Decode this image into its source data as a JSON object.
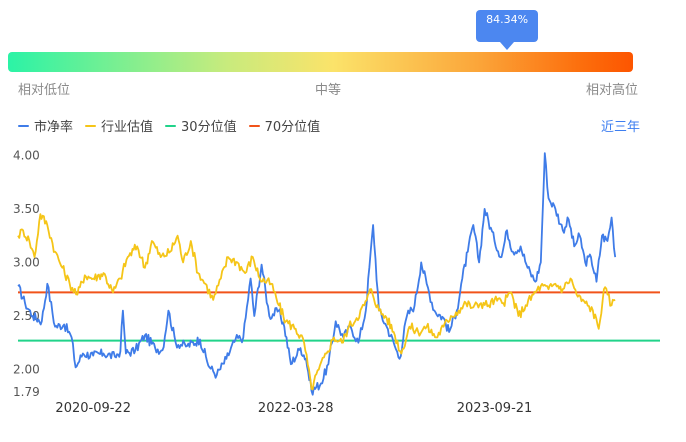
{
  "gauge": {
    "percent_label": "84.34%",
    "percent": 84.34,
    "low_label": "相对低位",
    "mid_label": "中等",
    "high_label": "相对高位"
  },
  "legend": {
    "items": [
      {
        "label": "市净率",
        "color": "#3f7ce8"
      },
      {
        "label": "行业估值",
        "color": "#f5c518"
      },
      {
        "label": "30分位值",
        "color": "#21d38a"
      },
      {
        "label": "70分位值",
        "color": "#f1531a"
      }
    ],
    "range_label": "近三年"
  },
  "chart_data": {
    "type": "line",
    "y_ticks": [
      "4.00",
      "3.50",
      "3.00",
      "2.50",
      "2.00",
      "1.79"
    ],
    "y_tick_values": [
      4.0,
      3.5,
      3.0,
      2.5,
      2.0,
      1.79
    ],
    "ylim": [
      1.79,
      4.05
    ],
    "x_ticks": [
      "2020-09-22",
      "2022-03-28",
      "2023-09-21"
    ],
    "x_range": [
      "2020-03-01",
      "2024-12-15"
    ],
    "x_tick_dates": [
      "2020-09-22",
      "2022-03-28",
      "2023-09-21"
    ],
    "reference_lines": [
      {
        "name": "30分位值",
        "value": 2.27,
        "color": "#21d38a"
      },
      {
        "name": "70分位值",
        "value": 2.72,
        "color": "#f1531a"
      }
    ],
    "series": [
      {
        "name": "市净率",
        "color": "#3f7ce8",
        "points": [
          [
            "2020-03-01",
            2.78
          ],
          [
            "2020-03-20",
            2.62
          ],
          [
            "2020-04-10",
            2.5
          ],
          [
            "2020-05-05",
            2.45
          ],
          [
            "2020-05-20",
            2.8
          ],
          [
            "2020-06-10",
            2.4
          ],
          [
            "2020-07-05",
            2.42
          ],
          [
            "2020-07-25",
            2.3
          ],
          [
            "2020-08-05",
            2.02
          ],
          [
            "2020-08-25",
            2.15
          ],
          [
            "2020-09-22",
            2.13
          ],
          [
            "2020-10-20",
            2.15
          ],
          [
            "2020-11-20",
            2.12
          ],
          [
            "2020-12-05",
            2.17
          ],
          [
            "2020-12-12",
            2.55
          ],
          [
            "2020-12-20",
            2.15
          ],
          [
            "2021-01-15",
            2.18
          ],
          [
            "2021-02-10",
            2.32
          ],
          [
            "2021-03-10",
            2.2
          ],
          [
            "2021-03-30",
            2.18
          ],
          [
            "2021-04-15",
            2.55
          ],
          [
            "2021-05-05",
            2.25
          ],
          [
            "2021-06-05",
            2.22
          ],
          [
            "2021-07-10",
            2.28
          ],
          [
            "2021-08-05",
            2.02
          ],
          [
            "2021-08-25",
            1.95
          ],
          [
            "2021-09-20",
            2.1
          ],
          [
            "2021-10-15",
            2.28
          ],
          [
            "2021-11-05",
            2.3
          ],
          [
            "2021-11-25",
            2.85
          ],
          [
            "2021-12-05",
            2.5
          ],
          [
            "2021-12-25",
            2.98
          ],
          [
            "2022-01-15",
            2.5
          ],
          [
            "2022-02-10",
            2.55
          ],
          [
            "2022-02-25",
            2.4
          ],
          [
            "2022-03-15",
            2.05
          ],
          [
            "2022-04-10",
            2.2
          ],
          [
            "2022-04-25",
            2.1
          ],
          [
            "2022-05-10",
            1.8
          ],
          [
            "2022-06-05",
            1.87
          ],
          [
            "2022-06-25",
            2.05
          ],
          [
            "2022-07-15",
            2.45
          ],
          [
            "2022-08-05",
            2.3
          ],
          [
            "2022-08-25",
            2.4
          ],
          [
            "2022-09-15",
            2.25
          ],
          [
            "2022-10-05",
            2.55
          ],
          [
            "2022-10-25",
            3.35
          ],
          [
            "2022-11-10",
            2.55
          ],
          [
            "2022-12-01",
            2.4
          ],
          [
            "2022-12-20",
            2.25
          ],
          [
            "2023-01-05",
            2.1
          ],
          [
            "2023-01-25",
            2.5
          ],
          [
            "2023-02-15",
            2.6
          ],
          [
            "2023-03-05",
            3.0
          ],
          [
            "2023-03-20",
            2.8
          ],
          [
            "2023-04-10",
            2.55
          ],
          [
            "2023-05-05",
            2.48
          ],
          [
            "2023-05-20",
            2.35
          ],
          [
            "2023-06-10",
            2.55
          ],
          [
            "2023-06-25",
            2.85
          ],
          [
            "2023-07-10",
            3.1
          ],
          [
            "2023-07-25",
            3.35
          ],
          [
            "2023-08-10",
            3.0
          ],
          [
            "2023-08-25",
            3.5
          ],
          [
            "2023-09-21",
            3.2
          ],
          [
            "2023-10-10",
            3.05
          ],
          [
            "2023-10-25",
            3.3
          ],
          [
            "2023-11-10",
            3.1
          ],
          [
            "2023-12-01",
            3.15
          ],
          [
            "2023-12-20",
            2.95
          ],
          [
            "2024-01-10",
            2.82
          ],
          [
            "2024-01-25",
            3.0
          ],
          [
            "2024-02-05",
            4.02
          ],
          [
            "2024-02-15",
            3.6
          ],
          [
            "2024-03-05",
            3.5
          ],
          [
            "2024-03-25",
            3.3
          ],
          [
            "2024-04-10",
            3.4
          ],
          [
            "2024-04-25",
            3.15
          ],
          [
            "2024-05-10",
            3.25
          ],
          [
            "2024-05-25",
            3.0
          ],
          [
            "2024-06-10",
            3.05
          ],
          [
            "2024-06-25",
            2.82
          ],
          [
            "2024-07-10",
            3.25
          ],
          [
            "2024-07-25",
            3.2
          ],
          [
            "2024-08-05",
            3.42
          ],
          [
            "2024-08-15",
            3.05
          ]
        ]
      },
      {
        "name": "行业估值",
        "color": "#f5c518",
        "points": [
          [
            "2020-03-01",
            3.25
          ],
          [
            "2020-03-15",
            3.3
          ],
          [
            "2020-04-01",
            3.2
          ],
          [
            "2020-04-15",
            3.05
          ],
          [
            "2020-05-01",
            3.45
          ],
          [
            "2020-05-20",
            3.35
          ],
          [
            "2020-06-10",
            3.1
          ],
          [
            "2020-06-30",
            2.95
          ],
          [
            "2020-07-20",
            2.8
          ],
          [
            "2020-08-10",
            2.7
          ],
          [
            "2020-08-30",
            2.88
          ],
          [
            "2020-09-22",
            2.85
          ],
          [
            "2020-10-20",
            2.9
          ],
          [
            "2020-11-15",
            2.72
          ],
          [
            "2020-12-05",
            2.85
          ],
          [
            "2020-12-25",
            3.05
          ],
          [
            "2021-01-20",
            3.15
          ],
          [
            "2021-02-10",
            2.95
          ],
          [
            "2021-03-01",
            3.2
          ],
          [
            "2021-03-25",
            3.05
          ],
          [
            "2021-04-20",
            3.1
          ],
          [
            "2021-05-10",
            3.25
          ],
          [
            "2021-05-25",
            3.0
          ],
          [
            "2021-06-15",
            3.2
          ],
          [
            "2021-07-05",
            2.9
          ],
          [
            "2021-07-25",
            2.8
          ],
          [
            "2021-08-15",
            2.65
          ],
          [
            "2021-09-05",
            2.85
          ],
          [
            "2021-09-25",
            3.05
          ],
          [
            "2021-10-20",
            3.0
          ],
          [
            "2021-11-10",
            2.9
          ],
          [
            "2021-12-01",
            3.05
          ],
          [
            "2021-12-20",
            2.85
          ],
          [
            "2022-01-20",
            2.8
          ],
          [
            "2022-02-10",
            2.6
          ],
          [
            "2022-03-01",
            2.45
          ],
          [
            "2022-03-28",
            2.38
          ],
          [
            "2022-04-20",
            2.25
          ],
          [
            "2022-05-10",
            1.82
          ],
          [
            "2022-05-30",
            2.0
          ],
          [
            "2022-06-20",
            2.15
          ],
          [
            "2022-07-10",
            2.3
          ],
          [
            "2022-08-01",
            2.25
          ],
          [
            "2022-08-20",
            2.4
          ],
          [
            "2022-09-10",
            2.48
          ],
          [
            "2022-10-01",
            2.6
          ],
          [
            "2022-10-20",
            2.75
          ],
          [
            "2022-11-10",
            2.55
          ],
          [
            "2022-12-01",
            2.48
          ],
          [
            "2022-12-20",
            2.35
          ],
          [
            "2023-01-10",
            2.15
          ],
          [
            "2023-02-01",
            2.4
          ],
          [
            "2023-02-25",
            2.35
          ],
          [
            "2023-03-20",
            2.4
          ],
          [
            "2023-04-15",
            2.3
          ],
          [
            "2023-05-05",
            2.4
          ],
          [
            "2023-05-25",
            2.5
          ],
          [
            "2023-06-15",
            2.55
          ],
          [
            "2023-07-05",
            2.62
          ],
          [
            "2023-07-25",
            2.58
          ],
          [
            "2023-08-15",
            2.62
          ],
          [
            "2023-09-05",
            2.6
          ],
          [
            "2023-09-21",
            2.65
          ],
          [
            "2023-10-15",
            2.62
          ],
          [
            "2023-11-05",
            2.72
          ],
          [
            "2023-11-25",
            2.5
          ],
          [
            "2023-12-15",
            2.6
          ],
          [
            "2024-01-05",
            2.7
          ],
          [
            "2024-01-25",
            2.78
          ],
          [
            "2024-02-15",
            2.75
          ],
          [
            "2024-03-05",
            2.8
          ],
          [
            "2024-03-25",
            2.75
          ],
          [
            "2024-04-15",
            2.85
          ],
          [
            "2024-05-05",
            2.68
          ],
          [
            "2024-05-25",
            2.62
          ],
          [
            "2024-06-15",
            2.55
          ],
          [
            "2024-07-01",
            2.38
          ],
          [
            "2024-07-15",
            2.75
          ],
          [
            "2024-07-25",
            2.7
          ],
          [
            "2024-08-05",
            2.6
          ],
          [
            "2024-08-15",
            2.65
          ]
        ]
      }
    ]
  }
}
